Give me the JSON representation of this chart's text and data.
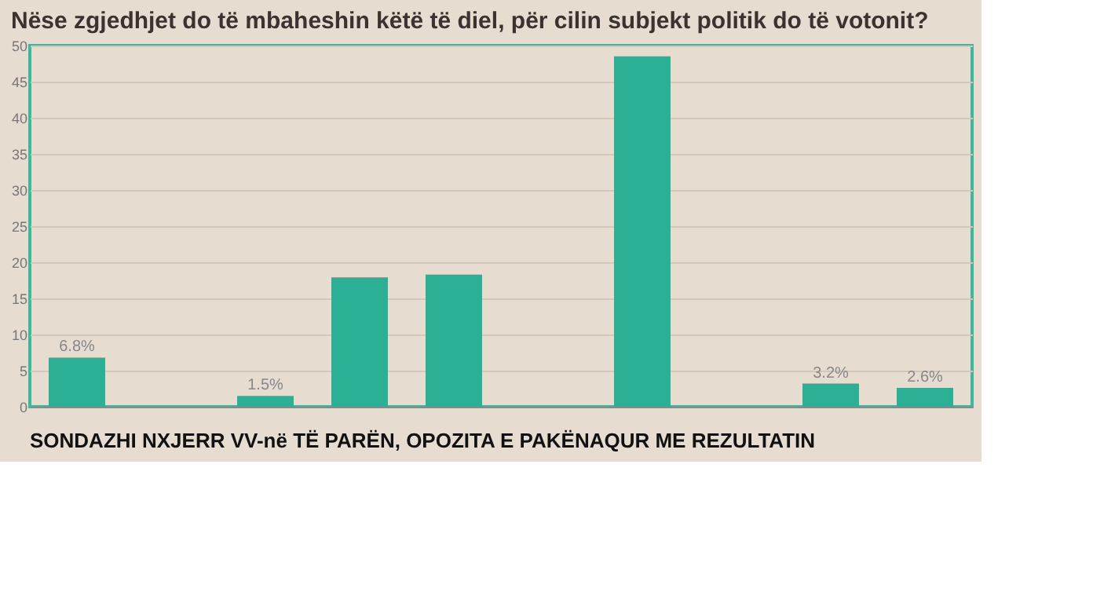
{
  "chart_data": {
    "type": "bar",
    "title": "Nëse zgjedhjet do të mbaheshin këtë të diel, për cilin subjekt politik do të votonit?",
    "categories": [
      null,
      null,
      null,
      null,
      null,
      null,
      null,
      null,
      null,
      null
    ],
    "values": [
      6.8,
      null,
      1.5,
      17.9,
      18.3,
      null,
      48.5,
      null,
      3.2,
      2.6
    ],
    "value_labels": [
      "6.8%",
      null,
      "1.5%",
      null,
      null,
      null,
      null,
      null,
      "3.2%",
      "2.6%"
    ],
    "color": "#2bb096",
    "ylim": [
      0,
      50
    ],
    "yticks": [
      0,
      5,
      10,
      15,
      20,
      25,
      30,
      35,
      40,
      45,
      50
    ],
    "grid": "y",
    "annotations": [
      "SONDAZHI NXJERR VV-në TË PARËN, OPOZITA E PAKËNAQUR ME REZULTATIN"
    ]
  }
}
